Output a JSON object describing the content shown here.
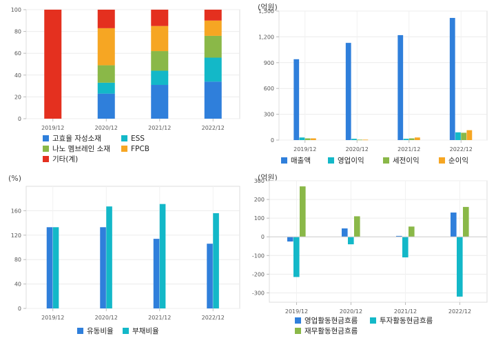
{
  "chart_data": [
    {
      "id": "composition",
      "type": "bar",
      "stacked": true,
      "title": "",
      "unit": "",
      "categories": [
        "2019/12",
        "2020/12",
        "2021/12",
        "2022/12"
      ],
      "ylim": [
        0,
        100
      ],
      "yticks": [
        0,
        20,
        40,
        60,
        80,
        100
      ],
      "grid": true,
      "legend_position": "bottom-left",
      "series": [
        {
          "name": "고효율 자성소재",
          "color": "#2f7fdb",
          "values": [
            0,
            23,
            31,
            34
          ]
        },
        {
          "name": "ESS",
          "color": "#13b8c8",
          "values": [
            0,
            10,
            13,
            22
          ]
        },
        {
          "name": "나노 멤브레인 소재",
          "color": "#8ab848",
          "values": [
            0,
            16,
            18,
            20
          ]
        },
        {
          "name": "FPCB",
          "color": "#f6a623",
          "values": [
            0,
            34,
            23,
            14
          ]
        },
        {
          "name": "기타(계)",
          "color": "#e4301f",
          "values": [
            100,
            17,
            15,
            10
          ]
        }
      ]
    },
    {
      "id": "income",
      "type": "bar",
      "title": "",
      "unit": "(억원)",
      "categories": [
        "2019/12",
        "2020/12",
        "2021/12",
        "2022/12"
      ],
      "ylim": [
        0,
        1500
      ],
      "yticks": [
        0,
        300,
        600,
        900,
        1200,
        1500
      ],
      "ytick_labels": [
        "0",
        "300",
        "600",
        "900",
        "1,200",
        "1,500"
      ],
      "grid": true,
      "legend_position": "bottom",
      "series": [
        {
          "name": "매출액",
          "color": "#2f7fdb",
          "values": [
            940,
            1130,
            1220,
            1420
          ]
        },
        {
          "name": "영업이익",
          "color": "#13b8c8",
          "values": [
            30,
            15,
            15,
            90
          ]
        },
        {
          "name": "세전이익",
          "color": "#8ab848",
          "values": [
            20,
            5,
            20,
            85
          ]
        },
        {
          "name": "순이익",
          "color": "#f6a623",
          "values": [
            20,
            5,
            30,
            115
          ]
        }
      ]
    },
    {
      "id": "ratios",
      "type": "bar",
      "title": "",
      "unit": "(%)",
      "categories": [
        "2019/12",
        "2020/12",
        "2021/12",
        "2022/12"
      ],
      "ylim": [
        0,
        200
      ],
      "yticks": [
        0,
        40,
        80,
        120,
        160
      ],
      "grid": true,
      "legend_position": "bottom",
      "series": [
        {
          "name": "유동비율",
          "color": "#2f7fdb",
          "values": [
            133,
            133,
            114,
            106
          ]
        },
        {
          "name": "부채비율",
          "color": "#13b8c8",
          "values": [
            133,
            167,
            171,
            156
          ]
        }
      ]
    },
    {
      "id": "cashflow",
      "type": "bar",
      "title": "",
      "unit": "(억원)",
      "categories": [
        "2019/12",
        "2020/12",
        "2021/12",
        "2022/12"
      ],
      "ylim": [
        -350,
        300
      ],
      "yticks": [
        -300,
        -200,
        -100,
        0,
        100,
        200,
        300
      ],
      "grid": true,
      "legend_position": "bottom",
      "series": [
        {
          "name": "영업활동현금흐름",
          "color": "#2f7fdb",
          "values": [
            -25,
            45,
            5,
            130
          ]
        },
        {
          "name": "투자활동현금흐름",
          "color": "#13b8c8",
          "values": [
            -215,
            -40,
            -110,
            -320
          ]
        },
        {
          "name": "재무활동현금흐름",
          "color": "#8ab848",
          "values": [
            270,
            110,
            55,
            160
          ]
        }
      ]
    }
  ]
}
